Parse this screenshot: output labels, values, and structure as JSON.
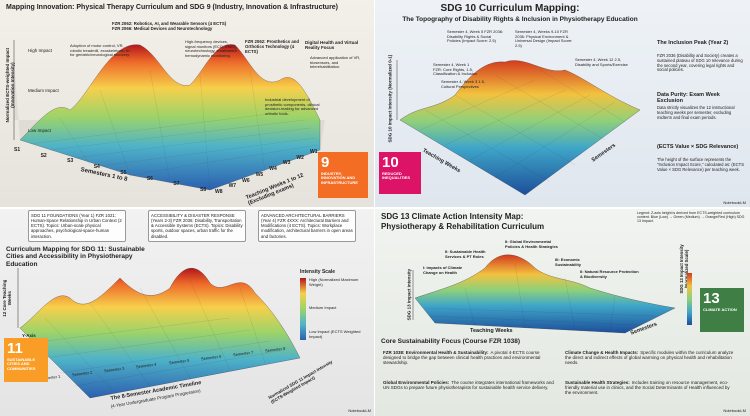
{
  "panels": [
    {
      "title": "Mapping Innovation: Physical Therapy Curriculum and SDG 9 (Industry, Innovation & Infrastructure)",
      "y_axis": "Normalized ECTS-weighted Impact (Innovation Intensity)",
      "y_levels": [
        "High Impact",
        "Medium Impact",
        "Low Impact"
      ],
      "x_axis": "Semesters 1 to 8",
      "x_labels": [
        "S1",
        "S2",
        "S3",
        "S4",
        "S5",
        "S6",
        "S7",
        "S8"
      ],
      "z_axis": "Teaching Weeks 1 to 12 (Excluding exams)",
      "z_labels": [
        "W8",
        "W7",
        "W6",
        "W5",
        "W4",
        "W3",
        "W2",
        "W1"
      ],
      "annotations": [
        "FZR 2062: Robotics, AI, and Wearable Sensors (4 ECTS) FZR 2066: Medical Devices and Neurotechnology",
        "Adoption of motor control, VR, robotic treadmill, exoskeletons, AI for geriatric/neurological recovery.",
        "High-frequency devices, signal monitors (ECG, EMG), neurotechnology, smartwatch hemodynamic monitoring.",
        "FZR 2062: Prosthetics and Orthotics Technology (4 ECTS)",
        "Digital Health and Virtual Reality Focus",
        "Advanced application of VR, biosensors, and telerehabilitation.",
        "Industrial development of prosthetic components, clinical decision-making for advanced orthotic tools."
      ],
      "badge": {
        "number": "9",
        "text": "INDUSTRY, INNOVATION AND INFRASTRUCTURE"
      }
    },
    {
      "title": "SDG 10 Curriculum Mapping:",
      "subtitle": "The Topography of Disability Rights & Inclusion in Physiotherapy Education",
      "y_axis": "SDG 10 Impact Intensity (Normalized 0-1)",
      "x_axis": "Teaching Weeks",
      "z_axis": "Semesters",
      "annotations": [
        "Semester 4, Week 5 FZR 2036: Disability Rights & Social Policies (Impact Score: 2.5)",
        "Semester 4, Weeks 9-10 FZR 2036: Physical Environment & Universal Design (Impact Score: 2.5)",
        "Semester 4, Week 1 FZR: Core Rights, 1.5, Classification & Inclusion",
        "Semester 4, Week 3 1.5, Cultural Perspectives",
        "Semester 4, Week 12 2.5, Disability and Sports/Exercise"
      ],
      "side": [
        {
          "heading": "The Inclusion Peak (Year 2)",
          "text": "FZR 2036 (Disability and Society) creates a sustained plateau of SDG 10 relevance during the second year, covering legal rights and social policies."
        },
        {
          "heading": "Data Purity: Exam Week Exclusion",
          "text": "Data strictly visualizes the 12 instructional teaching weeks per semester, excluding midterm and final exam periods."
        },
        {
          "heading": "(ECTS Value × SDG Relevance)",
          "text": "The height of the surface represents the \"Inclusion Impact Score,\" calculated as: (ECTS Value × SDG Relevance) per teaching week."
        }
      ],
      "badge": {
        "number": "10",
        "text": "REDUCED INEQUALITIES"
      },
      "footer": "NotebookLM"
    },
    {
      "title": "Curriculum Mapping for SDG 11: Sustainable Cities and Accessibility in Physiotherapy Education",
      "boxes": [
        "SDG 11 FOUNDATIONS (Year 1) FZR 1021: Human-Space Relationship in Urban Context (2 ECTS). Topics: Urban-scale physical approaches, psychological-space-human interaction.",
        "ACCESSIBILITY & DISASTER RESPONSE (Years 2-3) FZR 2036: Disability, Transportation & Accessible Systems (ECTS). Topics: Disability sports, outdoor spaces, urban traffic for the disabled.",
        "ADVANCED ARCHITECTURAL BARRIERS (Year 4) FZR 4XXX: Architectural Barriers and Modifications (4 ECTS). Topics: Workplace modification, architectural barriers in open areas and factories."
      ],
      "legend_title": "Intensity Scale",
      "legend_levels": [
        "High (Normalized Maximum Weight)",
        "Medium Impact",
        "Low Impact (ECTS Weighted Impact)"
      ],
      "y_axis": "12 Core Teaching Weeks",
      "y_tag": "Y-Axis",
      "x_axis": "The 8-Semester Academic Timeline",
      "x_sub": "(4-Year Undergraduate Program Progression)",
      "x_labels": [
        "Semester 1",
        "Semester 2",
        "Semester 3",
        "Semester 4",
        "Semester 5",
        "Semester 6",
        "Semester 7",
        "Semester 8"
      ],
      "z_axis": "Normalized SDG 11 Impact Intensity (ECTS-Weighted Impact)",
      "badge": {
        "number": "11",
        "text": "SUSTAINABLE CITIES AND COMMUNITIES"
      },
      "footer": "NotebookLM"
    },
    {
      "title": "SDG 13 Climate Action Intensity Map:",
      "subtitle": "Physiotherapy & Rehabilitation Curriculum",
      "legend": "Legend: Z-axis height is derived from ECTS-weighted curriculum content. Blue (Low) → Green (Medium) → Orange/Red (High) SDG 13 Impact.",
      "peaks": [
        "II: Global Environmental Policies & Health Strategies",
        "II: Sustainable Health Services & PT Roles",
        "I: Impacts of Climate Change on Health",
        "III: Economic Sustainability",
        "II: Natural Resource Protection & Biodiversity"
      ],
      "y_axis": "SDG 13 Impact Intensity",
      "x_axis": "Teaching Weeks",
      "z_axis": "Semesters",
      "scale": "SDG 13 Impact Intensity (Normalized Scale)",
      "focus_title": "Core Sustainability Focus (Course FZR 1038)",
      "focus": [
        {
          "heading": "FZR 1038: Environmental Health & Sustainability:",
          "text": "A pivotal 4-ECTS course designed to bridge the gap between clinical health practices and environmental stewardship."
        },
        {
          "heading": "Climate Change & Health Impacts:",
          "text": "Specific modules within the curriculum analyze the direct and indirect effects of global warming on physical health and rehabilitation needs."
        },
        {
          "heading": "Global Environmental Policies:",
          "text": "The course integrates international frameworks and UN SDGs to prepare future physiotherapists for sustainable health service delivery."
        },
        {
          "heading": "Sustainable Health Strategies:",
          "text": "Includes training on resource management, eco-friendly material use in clinics, and the Social Determinants of Health influenced by the environment."
        }
      ],
      "badge": {
        "number": "13",
        "text": "CLIMATE ACTION"
      },
      "footer": "NotebookLM"
    }
  ]
}
